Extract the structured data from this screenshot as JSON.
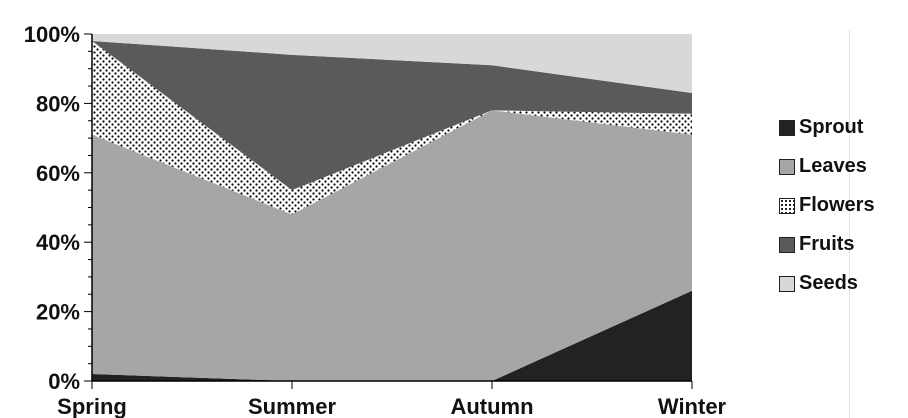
{
  "chart_data": {
    "type": "area",
    "stacked": "percent",
    "categories": [
      "Spring",
      "Summer",
      "Autumn",
      "Winter"
    ],
    "ylim": [
      0,
      100
    ],
    "yticks": [
      "0%",
      "20%",
      "40%",
      "60%",
      "80%",
      "100%"
    ],
    "grid": false,
    "legend_position": "right",
    "series": [
      {
        "name": "Sprout",
        "values": [
          2,
          0,
          0,
          26
        ],
        "color": "#222222",
        "pattern": "solid"
      },
      {
        "name": "Leaves",
        "values": [
          69,
          48,
          78,
          45
        ],
        "color": "#a6a6a6",
        "pattern": "solid"
      },
      {
        "name": "Flowers",
        "values": [
          27,
          7,
          0,
          6
        ],
        "color": "#ffffff",
        "pattern": "dots"
      },
      {
        "name": "Fruits",
        "values": [
          0,
          39,
          13,
          6
        ],
        "color": "#5a5a5a",
        "pattern": "solid"
      },
      {
        "name": "Seeds",
        "values": [
          2,
          6,
          9,
          17
        ],
        "color": "#d8d8d8",
        "pattern": "solid"
      }
    ]
  }
}
